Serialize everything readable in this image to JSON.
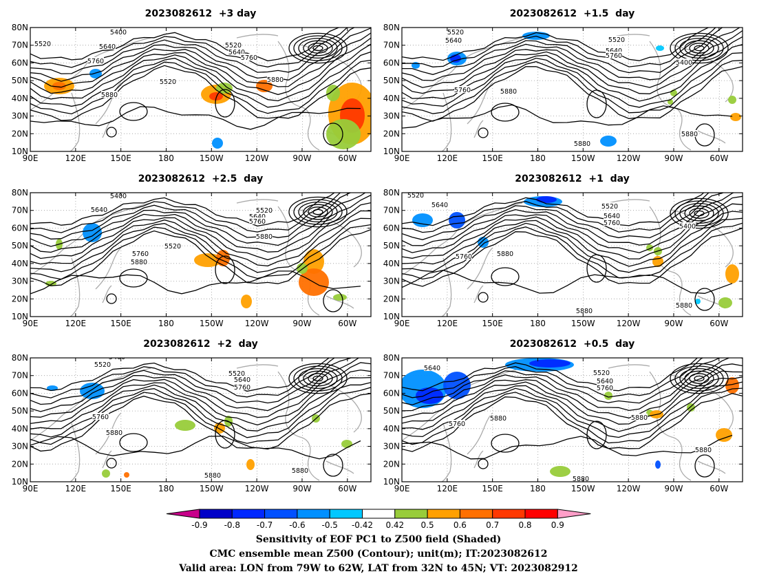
{
  "panels": [
    {
      "title": "2023082612  +3 day"
    },
    {
      "title": "2023082612  +1.5  day"
    },
    {
      "title": "2023082612  +2.5  day"
    },
    {
      "title": "2023082612  +1  day"
    },
    {
      "title": "2023082612  +2  day"
    },
    {
      "title": "2023082612  +0.5  day"
    }
  ],
  "lat_labels": [
    "80N",
    "70N",
    "60N",
    "50N",
    "40N",
    "30N",
    "20N",
    "10N"
  ],
  "lon_labels": [
    "90E",
    "120E",
    "150E",
    "180",
    "150W",
    "120W",
    "90W",
    "60W"
  ],
  "contour_labels": [
    "5400",
    "5520",
    "5640",
    "5760",
    "5880"
  ],
  "colorbar": {
    "ticks": [
      "-0.9",
      "-0.8",
      "-0.7",
      "-0.6",
      "-0.5",
      "-0.42",
      "0.42",
      "0.5",
      "0.6",
      "0.7",
      "0.8",
      "0.9"
    ],
    "colors": [
      "#c8008a",
      "#0000c8",
      "#0028ff",
      "#0050ff",
      "#0090ff",
      "#00c8ff",
      "#ffffff",
      "#98cc3a",
      "#ffa000",
      "#ff7000",
      "#ff3800",
      "#ff0000",
      "#ff9ec8"
    ]
  },
  "captions": [
    "Sensitivity of EOF PC1 to Z500 field (Shaded)",
    "CMC ensemble mean Z500 (Contour); unit(m); IT:2023082612",
    "Valid area: LON from 79W to 62W, LAT from 32N to 45N; VT: 2023082912"
  ]
}
